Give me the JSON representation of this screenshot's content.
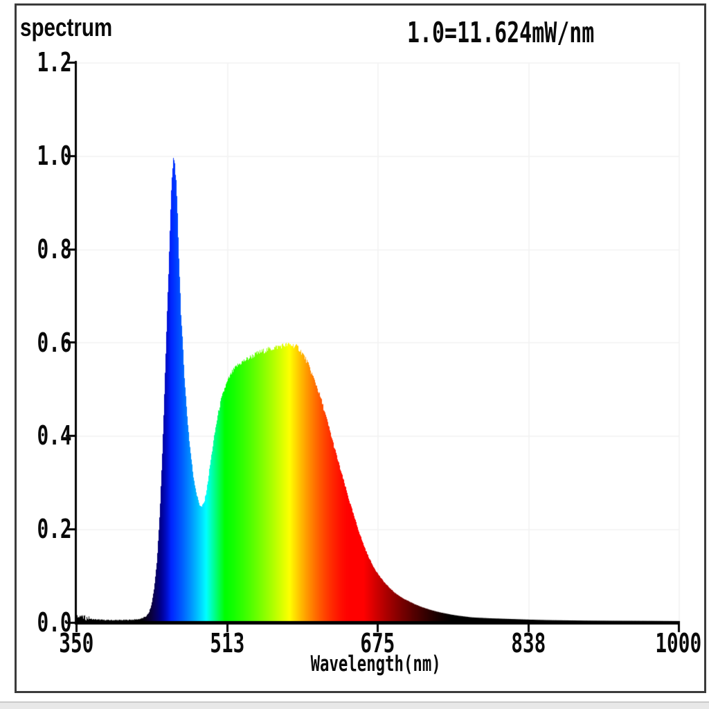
{
  "window": {
    "background_color": "#ffffff",
    "frame_color": "#3b3b3b",
    "bottom_bar_color": "#e8e8e8"
  },
  "chart": {
    "title": "spectrum",
    "annotation": "1.0=11.624mW/nm",
    "xlabel": "Wavelength(nm)",
    "text_color": "#0a0a0a"
  },
  "palette": {
    "axis_color": "#000000",
    "peak_blue": "#1c35d8",
    "cyan": "#00ddff",
    "green": "#17c908",
    "yellow": "#ffe000",
    "orange": "#ff9800",
    "red": "#ee1105",
    "dark_red_tail": "#6b0000"
  },
  "chart_data": {
    "type": "area",
    "title": "spectrum",
    "annotation": "1.0=11.624mW/nm",
    "xlabel": "Wavelength(nm)",
    "ylabel": "",
    "xlim": [
      350,
      1000
    ],
    "ylim": [
      0,
      1.2
    ],
    "x_ticks": [
      350,
      513,
      675,
      838,
      1000
    ],
    "x_tick_labels": [
      "350",
      "513",
      "675",
      "838",
      "1000"
    ],
    "y_ticks": [
      0.0,
      0.2,
      0.4,
      0.6,
      0.8,
      1.0,
      1.2
    ],
    "y_tick_labels": [
      "0.0",
      "0.2",
      "0.4",
      "0.6",
      "0.8",
      "1.0",
      "1.2"
    ],
    "grid": false,
    "legend": "none",
    "fill_style": "per-wavelength visible-spectrum colors, black outside ~420-750nm",
    "notable_points": {
      "blue_led_peak": {
        "wavelength_nm": 455,
        "value": 1.0
      },
      "dip": {
        "wavelength_nm": 485,
        "value": 0.25
      },
      "phosphor_peak": {
        "wavelength_nm": 580,
        "value": 0.595
      }
    },
    "series": [
      {
        "name": "spectrum",
        "x": [
          350,
          351,
          352,
          353,
          354,
          355,
          356,
          357,
          358,
          360,
          362,
          364,
          367,
          370,
          374,
          378,
          383,
          390,
          398,
          406,
          412,
          417,
          421,
          425,
          428,
          431,
          434,
          437,
          440,
          443,
          446,
          449,
          451,
          453,
          455,
          457,
          459,
          461,
          463,
          466,
          469,
          472,
          476,
          480,
          483,
          485,
          488,
          491,
          494,
          497,
          500,
          503,
          506,
          510,
          514,
          518,
          523,
          528,
          534,
          540,
          547,
          554,
          561,
          568,
          574,
          580,
          585,
          589,
          594,
          599,
          604,
          609,
          614,
          619,
          624,
          629,
          634,
          639,
          644,
          649,
          654,
          659,
          664,
          669,
          674,
          679,
          684,
          689,
          694,
          699,
          704,
          709,
          714,
          719,
          724,
          729,
          734,
          739,
          744,
          749,
          754,
          760,
          768,
          776,
          785,
          795,
          810,
          825,
          840,
          860,
          880,
          900,
          925,
          950,
          975,
          1000
        ],
        "y": [
          0.02,
          0.012,
          0.018,
          0.011,
          0.016,
          0.01,
          0.014,
          0.009,
          0.012,
          0.009,
          0.01,
          0.008,
          0.007,
          0.0065,
          0.006,
          0.0055,
          0.005,
          0.005,
          0.005,
          0.0055,
          0.006,
          0.007,
          0.009,
          0.013,
          0.02,
          0.038,
          0.075,
          0.135,
          0.235,
          0.38,
          0.555,
          0.73,
          0.85,
          0.95,
          1.0,
          0.965,
          0.875,
          0.76,
          0.655,
          0.545,
          0.455,
          0.385,
          0.315,
          0.272,
          0.252,
          0.247,
          0.258,
          0.29,
          0.335,
          0.376,
          0.415,
          0.449,
          0.476,
          0.502,
          0.521,
          0.536,
          0.549,
          0.557,
          0.564,
          0.571,
          0.578,
          0.583,
          0.587,
          0.591,
          0.594,
          0.595,
          0.593,
          0.589,
          0.576,
          0.558,
          0.533,
          0.508,
          0.478,
          0.443,
          0.407,
          0.37,
          0.334,
          0.299,
          0.264,
          0.231,
          0.2,
          0.171,
          0.146,
          0.125,
          0.108,
          0.094,
          0.082,
          0.072,
          0.063,
          0.056,
          0.05,
          0.045,
          0.04,
          0.036,
          0.032,
          0.029,
          0.026,
          0.023,
          0.021,
          0.019,
          0.017,
          0.015,
          0.013,
          0.011,
          0.01,
          0.009,
          0.008,
          0.007,
          0.006,
          0.005,
          0.0045,
          0.004,
          0.0037,
          0.0035,
          0.0033,
          0.003
        ]
      }
    ]
  }
}
